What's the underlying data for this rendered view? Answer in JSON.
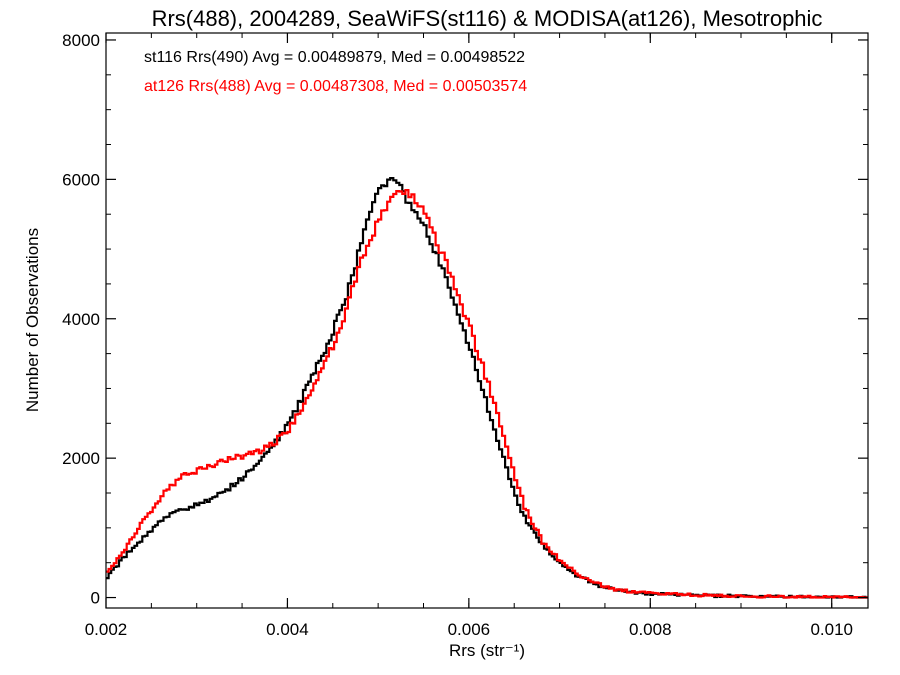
{
  "chart_data": {
    "type": "line",
    "title": "Rrs(488), 2004289, SeaWiFS(st116) & MODISA(at126), Mesotrophic",
    "xlabel": "Rrs (str⁻¹)",
    "ylabel": "Number of Observations",
    "xlim": [
      0.002,
      0.0104
    ],
    "ylim": [
      -150,
      8100
    ],
    "xticks": [
      0.002,
      0.004,
      0.006,
      0.008,
      0.01
    ],
    "xtick_labels": [
      "0.002",
      "0.004",
      "0.006",
      "0.008",
      "0.010"
    ],
    "yticks": [
      0,
      2000,
      4000,
      6000,
      8000
    ],
    "ytick_labels": [
      "0",
      "2000",
      "4000",
      "6000",
      "8000"
    ],
    "legend_placement": "top-left",
    "series": [
      {
        "name": "st116 Rrs(490)",
        "annotation": "st116 Rrs(490) Avg = 0.00489879, Med = 0.00498522",
        "color": "#000000",
        "x": [
          0.002,
          0.0022,
          0.0024,
          0.0026,
          0.0027,
          0.0028,
          0.003,
          0.0032,
          0.0034,
          0.0036,
          0.0038,
          0.004,
          0.0042,
          0.0044,
          0.0046,
          0.0047,
          0.0048,
          0.0049,
          0.005,
          0.0051,
          0.0052,
          0.0053,
          0.0054,
          0.0055,
          0.0056,
          0.0057,
          0.0058,
          0.0059,
          0.006,
          0.0061,
          0.0062,
          0.0063,
          0.0064,
          0.0065,
          0.0066,
          0.0068,
          0.007,
          0.0072,
          0.0074,
          0.0076,
          0.0078,
          0.008,
          0.0085,
          0.009,
          0.0095,
          0.01,
          0.0104
        ],
        "y": [
          300,
          600,
          850,
          1100,
          1200,
          1250,
          1330,
          1450,
          1620,
          1850,
          2150,
          2500,
          3000,
          3550,
          4200,
          4600,
          5100,
          5500,
          5850,
          6000,
          5950,
          5700,
          5550,
          5300,
          5000,
          4700,
          4350,
          3950,
          3550,
          3150,
          2700,
          2250,
          1850,
          1450,
          1150,
          750,
          480,
          300,
          180,
          110,
          70,
          50,
          30,
          20,
          10,
          5,
          0
        ]
      },
      {
        "name": "at126 Rrs(488)",
        "annotation": "at126 Rrs(488) Avg = 0.00487308, Med = 0.00503574",
        "color": "#ff0000",
        "x": [
          0.002,
          0.0022,
          0.0024,
          0.0026,
          0.0027,
          0.0028,
          0.003,
          0.0032,
          0.0034,
          0.0036,
          0.0038,
          0.004,
          0.0042,
          0.0044,
          0.0046,
          0.0047,
          0.0048,
          0.0049,
          0.005,
          0.0051,
          0.0052,
          0.0053,
          0.0054,
          0.0055,
          0.0056,
          0.0057,
          0.0058,
          0.0059,
          0.006,
          0.0061,
          0.0062,
          0.0063,
          0.0064,
          0.0065,
          0.0066,
          0.0068,
          0.007,
          0.0072,
          0.0074,
          0.0076,
          0.0078,
          0.008,
          0.0085,
          0.009,
          0.0095,
          0.01,
          0.0104
        ],
        "y": [
          350,
          700,
          1100,
          1450,
          1600,
          1720,
          1820,
          1920,
          2000,
          2060,
          2180,
          2400,
          2850,
          3350,
          3950,
          4450,
          4850,
          5150,
          5450,
          5700,
          5850,
          5800,
          5700,
          5500,
          5200,
          4900,
          4550,
          4200,
          3850,
          3450,
          3050,
          2600,
          2150,
          1700,
          1300,
          800,
          520,
          320,
          200,
          120,
          80,
          60,
          35,
          20,
          10,
          5,
          0
        ]
      }
    ]
  }
}
